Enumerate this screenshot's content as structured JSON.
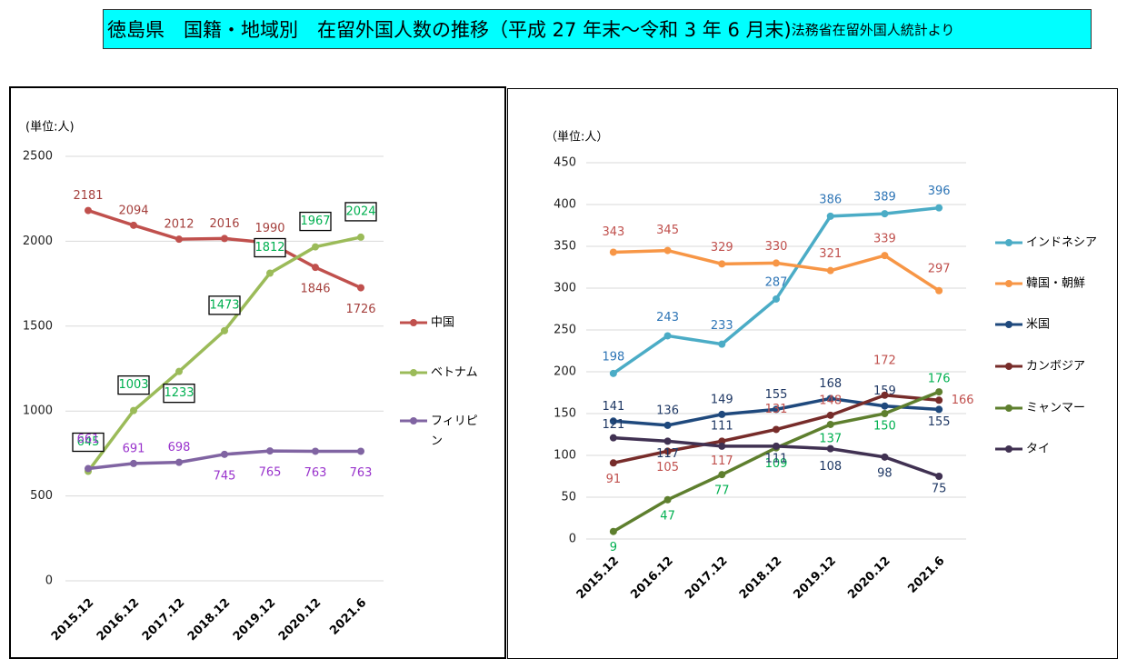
{
  "header": {
    "title": "徳島県　国籍・地域別　在留外国人数の推移（平成 27 年末～令和 3 年 6 月末)",
    "source": "法務省在留外国人統計より"
  },
  "chart_data": [
    {
      "type": "line",
      "y_label": "(単位:人)",
      "categories": [
        "2015.12",
        "2016.12",
        "2017.12",
        "2018.12",
        "2019.12",
        "2020.12",
        "2021.6"
      ],
      "ylim": [
        0,
        2500
      ],
      "yticks": [
        0,
        500,
        1000,
        1500,
        2000,
        2500
      ],
      "grid": true,
      "legend": "right",
      "series": [
        {
          "name": "中国",
          "color": "#c0504d",
          "label_color": "#a5403d",
          "values": [
            2181,
            2094,
            2012,
            2016,
            1990,
            1846,
            1726
          ]
        },
        {
          "name": "ベトナム",
          "color": "#9bbb59",
          "label_color": "#00b050",
          "values": [
            645,
            1003,
            1233,
            1473,
            1812,
            1967,
            2024
          ]
        },
        {
          "name": "フィリピン",
          "color": "#8064a2",
          "label_color": "#9933cc",
          "values": [
            661,
            691,
            698,
            745,
            765,
            763,
            763
          ]
        }
      ]
    },
    {
      "type": "line",
      "y_label": "（単位:人）",
      "categories": [
        "2015.12",
        "2016.12",
        "2017.12",
        "2018.12",
        "2019.12",
        "2020.12",
        "2021.6"
      ],
      "ylim": [
        0,
        450
      ],
      "yticks": [
        0,
        50,
        100,
        150,
        200,
        250,
        300,
        350,
        400,
        450
      ],
      "grid": true,
      "legend": "right",
      "series": [
        {
          "name": "インドネシア",
          "color": "#4bacc6",
          "label_color": "#2e75b6",
          "values": [
            198,
            243,
            233,
            287,
            386,
            389,
            396
          ]
        },
        {
          "name": "韓国・朝鮮",
          "color": "#f79646",
          "label_color": "#c0504d",
          "values": [
            343,
            345,
            329,
            330,
            321,
            339,
            297
          ]
        },
        {
          "name": "米国",
          "color": "#1f497d",
          "label_color": "#1f3864",
          "values": [
            141,
            136,
            149,
            155,
            168,
            159,
            155
          ]
        },
        {
          "name": "カンボジア",
          "color": "#772c2a",
          "label_color": "#c0504d",
          "values": [
            91,
            105,
            117,
            131,
            148,
            172,
            166
          ]
        },
        {
          "name": "ミャンマー",
          "color": "#5e7f2e",
          "label_color": "#00b050",
          "values": [
            9,
            47,
            77,
            109,
            137,
            150,
            176
          ]
        },
        {
          "name": "タイ",
          "color": "#403152",
          "label_color": "#1f3864",
          "values": [
            121,
            117,
            111,
            111,
            108,
            98,
            75
          ]
        }
      ]
    }
  ]
}
